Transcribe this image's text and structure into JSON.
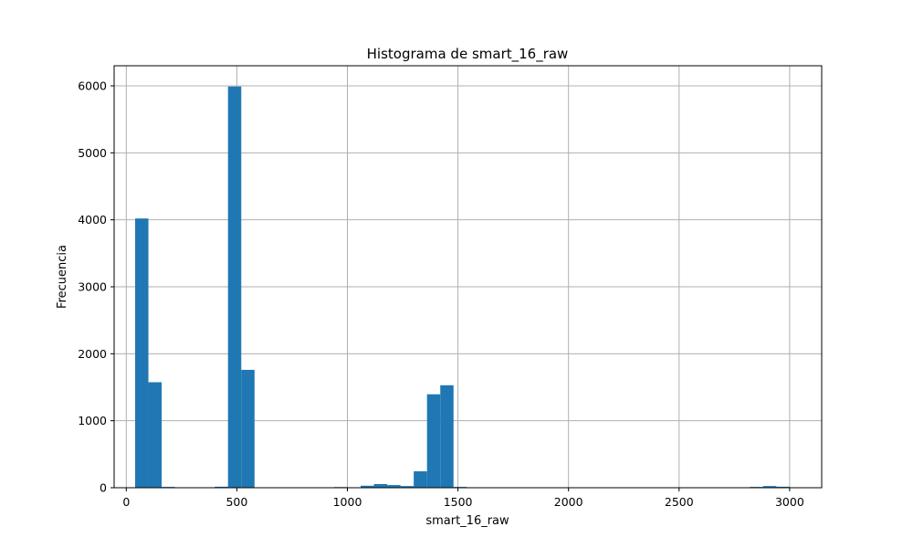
{
  "chart_data": {
    "type": "bar",
    "title": "Histograma de smart_16_raw",
    "xlabel": "smart_16_raw",
    "ylabel": "Frecuencia",
    "xlim": [
      -55,
      3145
    ],
    "ylim": [
      0,
      6300
    ],
    "xticks": [
      0,
      500,
      1000,
      1500,
      2000,
      2500,
      3000
    ],
    "yticks": [
      0,
      1000,
      2000,
      3000,
      4000,
      5000,
      6000
    ],
    "grid": true,
    "bar_color": "#1f77b4",
    "bins": [
      {
        "start": 40,
        "end": 100,
        "count": 4020
      },
      {
        "start": 100,
        "end": 160,
        "count": 1575
      },
      {
        "start": 160,
        "end": 220,
        "count": 12
      },
      {
        "start": 400,
        "end": 460,
        "count": 15
      },
      {
        "start": 460,
        "end": 520,
        "count": 5990
      },
      {
        "start": 520,
        "end": 580,
        "count": 1760
      },
      {
        "start": 940,
        "end": 1000,
        "count": 10
      },
      {
        "start": 1060,
        "end": 1120,
        "count": 30
      },
      {
        "start": 1120,
        "end": 1180,
        "count": 55
      },
      {
        "start": 1180,
        "end": 1240,
        "count": 40
      },
      {
        "start": 1240,
        "end": 1300,
        "count": 25
      },
      {
        "start": 1300,
        "end": 1360,
        "count": 245
      },
      {
        "start": 1360,
        "end": 1420,
        "count": 1395
      },
      {
        "start": 1420,
        "end": 1480,
        "count": 1530
      },
      {
        "start": 1480,
        "end": 1540,
        "count": 12
      },
      {
        "start": 2820,
        "end": 2880,
        "count": 12
      },
      {
        "start": 2880,
        "end": 2940,
        "count": 25
      },
      {
        "start": 2940,
        "end": 3000,
        "count": 15
      }
    ]
  }
}
